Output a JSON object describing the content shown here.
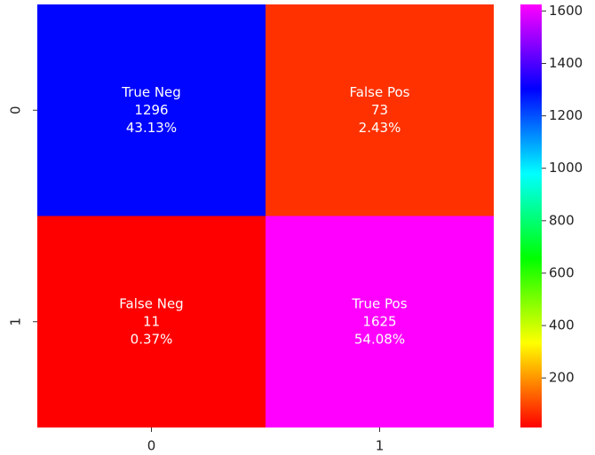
{
  "chart_data": {
    "type": "heatmap",
    "x_categories": [
      "0",
      "1"
    ],
    "y_categories": [
      "0",
      "1"
    ],
    "values": [
      [
        1296,
        73
      ],
      [
        11,
        1625
      ]
    ],
    "cell_names": [
      [
        "True Neg",
        "False Pos"
      ],
      [
        "False Neg",
        "True Pos"
      ]
    ],
    "percent_labels": [
      [
        "43.13%",
        "2.43%"
      ],
      [
        "0.37%",
        "54.08%"
      ]
    ],
    "colormap": [
      "#ff0000",
      "#ffff00",
      "#00ff00",
      "#00ffff",
      "#0000ff",
      "#ff00ff"
    ],
    "zlim": [
      11,
      1625
    ],
    "zticks": [
      200,
      400,
      600,
      800,
      1000,
      1200,
      1400,
      1600
    ]
  }
}
